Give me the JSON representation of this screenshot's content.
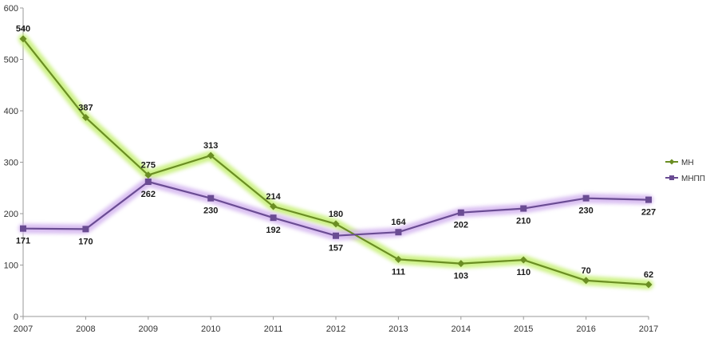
{
  "chart_data": {
    "type": "line",
    "title": "",
    "xlabel": "",
    "ylabel": "",
    "x": [
      "2007",
      "2008",
      "2009",
      "2010",
      "2011",
      "2012",
      "2013",
      "2014",
      "2015",
      "2016",
      "2017"
    ],
    "ylim": [
      0,
      600
    ],
    "yticks": [
      0,
      100,
      200,
      300,
      400,
      500,
      600
    ],
    "grid": false,
    "legend_position": "right",
    "series": [
      {
        "name": "МН",
        "marker": "diamond",
        "color": "#6b8e23",
        "glow": "#c8f07a",
        "values": [
          540,
          387,
          275,
          313,
          214,
          180,
          111,
          103,
          110,
          70,
          62
        ],
        "labels": [
          "540",
          "387",
          "275",
          "313",
          "214",
          "180",
          "111",
          "103",
          "110",
          "70",
          "62"
        ],
        "label_side": [
          "above",
          "above",
          "above",
          "above",
          "above",
          "above",
          "below",
          "below",
          "below",
          "above",
          "above"
        ]
      },
      {
        "name": "МНПП",
        "marker": "square",
        "color": "#6a4c93",
        "glow": "#d5b8f0",
        "values": [
          171,
          170,
          262,
          230,
          192,
          157,
          164,
          202,
          210,
          230,
          227
        ],
        "labels": [
          "171",
          "170",
          "262",
          "230",
          "192",
          "157",
          "164",
          "202",
          "210",
          "230",
          "227"
        ],
        "label_side": [
          "below",
          "below",
          "below",
          "below",
          "below",
          "below",
          "above",
          "below",
          "below",
          "below",
          "below"
        ]
      }
    ]
  }
}
